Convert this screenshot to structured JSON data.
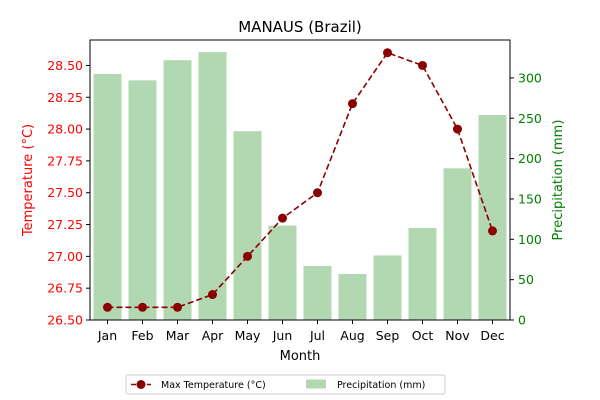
{
  "chart_data": {
    "type": "bar+line",
    "title": "MANAUS (Brazil)",
    "xlabel": "Month",
    "ylabel_left": "Temperature (°C)",
    "ylabel_right": "Precipitation (mm)",
    "categories": [
      "Jan",
      "Feb",
      "Mar",
      "Apr",
      "May",
      "Jun",
      "Jul",
      "Aug",
      "Sep",
      "Oct",
      "Nov",
      "Dec"
    ],
    "left_axis": {
      "range": [
        26.5,
        28.7
      ],
      "ticks": [
        "26.50",
        "26.75",
        "27.00",
        "27.25",
        "27.50",
        "27.75",
        "28.00",
        "28.25",
        "28.50"
      ],
      "color": "#ff0000"
    },
    "right_axis": {
      "range": [
        0,
        347
      ],
      "ticks": [
        "0",
        "50",
        "100",
        "150",
        "200",
        "250",
        "300"
      ],
      "color": "#008000"
    },
    "series": [
      {
        "name": "Max Temperature (°C)",
        "kind": "line",
        "axis": "left",
        "color": "#8b0000",
        "line_style": "dashed",
        "marker": "circle",
        "values": [
          26.6,
          26.6,
          26.6,
          26.7,
          27.0,
          27.3,
          27.5,
          28.2,
          28.6,
          28.5,
          28.0,
          27.2
        ]
      },
      {
        "name": "Precipitation (mm)",
        "kind": "bar",
        "axis": "right",
        "color": "#b2d8b2",
        "values": [
          305,
          297,
          322,
          332,
          234,
          117,
          67,
          57,
          80,
          114,
          188,
          254
        ]
      }
    ],
    "grid": false,
    "legend_position": "bottom-center"
  }
}
